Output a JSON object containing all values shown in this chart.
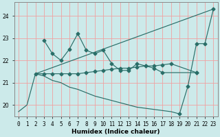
{
  "xlabel": "Humidex (Indice chaleur)",
  "x_values": [
    0,
    1,
    2,
    3,
    4,
    5,
    6,
    7,
    8,
    9,
    10,
    11,
    12,
    13,
    14,
    15,
    16,
    17,
    18,
    19,
    20,
    21,
    22,
    23
  ],
  "line_zigzag": [
    null,
    null,
    null,
    22.9,
    22.3,
    22.0,
    22.5,
    23.2,
    22.45,
    22.3,
    22.45,
    21.85,
    21.55,
    21.55,
    21.85,
    21.75,
    21.65,
    21.45,
    null,
    null,
    null,
    21.45,
    null,
    null
  ],
  "line_flat": [
    null,
    null,
    21.4,
    21.4,
    21.4,
    21.4,
    21.4,
    21.4,
    21.45,
    21.5,
    21.55,
    21.6,
    21.65,
    21.65,
    21.7,
    21.75,
    21.75,
    21.8,
    21.85,
    null,
    null,
    21.45,
    null,
    null
  ],
  "line_descend": [
    19.7,
    20.0,
    21.4,
    21.3,
    21.1,
    21.0,
    20.8,
    20.7,
    20.55,
    20.4,
    20.3,
    20.2,
    20.1,
    20.0,
    19.9,
    19.85,
    19.8,
    19.75,
    19.7,
    19.6,
    null,
    null,
    null,
    null
  ],
  "line_ascend": [
    null,
    null,
    21.4,
    null,
    null,
    null,
    null,
    null,
    null,
    null,
    null,
    null,
    null,
    null,
    null,
    null,
    null,
    null,
    null,
    null,
    null,
    null,
    null,
    24.3
  ],
  "line_right": [
    null,
    null,
    null,
    null,
    null,
    null,
    null,
    null,
    null,
    null,
    null,
    null,
    null,
    null,
    null,
    null,
    null,
    null,
    null,
    19.6,
    20.85,
    22.75,
    22.75,
    24.3
  ],
  "background_color": "#cceaea",
  "grid_color_h": "#f0a0a0",
  "grid_color_v": "#f0a0a0",
  "line_color": "#2a6e68",
  "ylim": [
    19.5,
    24.6
  ],
  "yticks": [
    20,
    21,
    22,
    23,
    24
  ],
  "xlim": [
    -0.5,
    23.5
  ]
}
